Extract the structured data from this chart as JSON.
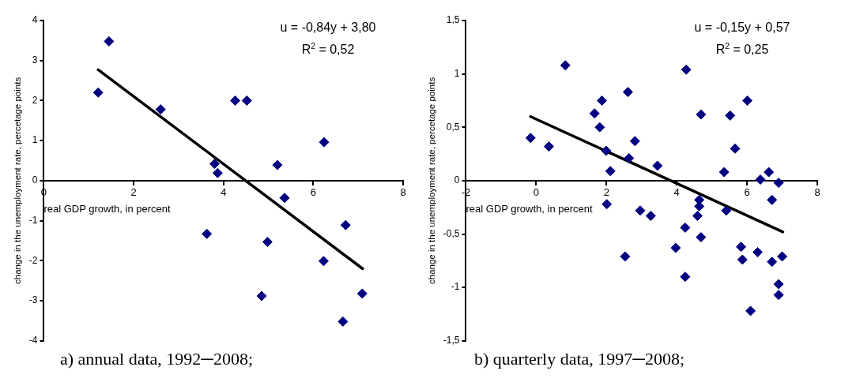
{
  "chart_data": [
    {
      "type": "scatter",
      "xlabel": "real GDP growth, in percent",
      "ylabel": "change in the unemployment rate, percetage points",
      "annotations": [
        "u = -0,84y + 3,80",
        "R$^{2}$ = 0,52",
        "a) annual data, 1992─2008;"
      ],
      "xlim": [
        0,
        8
      ],
      "xticks": [
        0,
        2,
        4,
        6,
        8
      ],
      "ylim": [
        -4,
        4
      ],
      "yticks": [
        -4,
        -3,
        -2,
        -1,
        0,
        1,
        2,
        3,
        4
      ],
      "grid": false,
      "legend": false,
      "marker": "diamond",
      "series": [
        {
          "type": "scatter",
          "color": "#000080",
          "x": [
            1.21,
            1.45,
            2.6,
            3.8,
            3.87,
            4.26,
            4.52,
            6.24,
            5.2,
            5.36,
            3.63,
            4.98,
            6.72,
            6.23,
            4.85,
            7.09,
            6.66
          ],
          "values": [
            2.2,
            3.48,
            1.78,
            0.42,
            0.19,
            2.0,
            2.0,
            0.96,
            0.39,
            -0.43,
            -1.33,
            -1.53,
            -1.11,
            -2.01,
            -2.88,
            -2.82,
            -3.52
          ]
        },
        {
          "type": "line",
          "color": "#000000",
          "marker": "none",
          "x": [
            1.21,
            7.1
          ],
          "values": [
            2.77,
            -2.2
          ]
        }
      ]
    },
    {
      "type": "scatter",
      "xlabel": "real GDP growth, in percent",
      "ylabel": "change in the unemployment rate, percetage points",
      "annotations": [
        "u = -0,15y + 0,57",
        "R$^{2}$ = 0,25",
        "b) quarterly data, 1997─2008;"
      ],
      "xlim": [
        -2,
        8
      ],
      "xticks": [
        -2,
        0,
        2,
        4,
        6,
        8
      ],
      "ylim": [
        -1.5,
        1.5
      ],
      "yticks": [
        {
          "value": -1.5,
          "label": "-1,5"
        },
        -1,
        {
          "value": -0.5,
          "label": "-0,5"
        },
        0,
        {
          "value": 0.5,
          "label": "0,5"
        },
        1,
        {
          "value": 1.5,
          "label": "1,5"
        }
      ],
      "grid": false,
      "legend": false,
      "marker": "diamond",
      "series": [
        {
          "type": "scatter",
          "color": "#000080",
          "x": [
            -0.16,
            0.36,
            0.83,
            1.66,
            1.87,
            1.81,
            1.99,
            2.11,
            2.61,
            2.81,
            2.64,
            3.45,
            4.27,
            4.69,
            5.52,
            6.01,
            5.66,
            5.35,
            6.38,
            6.62,
            6.9,
            2.01,
            2.96,
            3.26,
            2.53,
            4.64,
            4.64,
            4.59,
            4.24,
            4.69,
            3.97,
            4.24,
            5.41,
            5.83,
            5.87,
            6.3,
            6.71,
            6.71,
            7.0,
            6.9,
            6.9,
            6.1
          ],
          "values": [
            0.4,
            0.32,
            1.08,
            0.63,
            0.75,
            0.5,
            0.28,
            0.09,
            0.83,
            0.37,
            0.21,
            0.14,
            1.04,
            0.62,
            0.61,
            0.75,
            0.3,
            0.08,
            0.01,
            0.08,
            -0.02,
            -0.22,
            -0.28,
            -0.33,
            -0.71,
            -0.18,
            -0.24,
            -0.33,
            -0.44,
            -0.53,
            -0.63,
            -0.9,
            -0.28,
            -0.62,
            -0.74,
            -0.67,
            -0.18,
            -0.76,
            -0.71,
            -0.97,
            -1.07,
            -1.22
          ]
        },
        {
          "type": "line",
          "color": "#000000",
          "marker": "none",
          "x": [
            -0.16,
            7.02
          ],
          "values": [
            0.6,
            -0.48
          ]
        }
      ]
    }
  ]
}
